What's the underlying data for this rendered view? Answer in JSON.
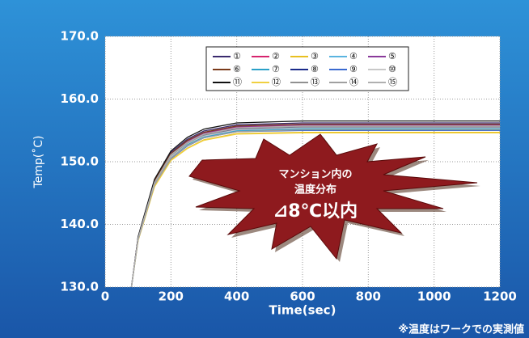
{
  "chart_data": {
    "type": "line",
    "ylabel": "Temp(˚C)",
    "xlabel": "Time(sec)",
    "annotation": [
      "マンション内の",
      "温度分布",
      "⊿8℃以内"
    ],
    "footnote": "※温度はワークでの実測値",
    "xlim": [
      0,
      1200
    ],
    "xticks": [
      0,
      200,
      400,
      600,
      800,
      1000,
      1200
    ],
    "ylim": [
      130,
      170
    ],
    "yticks": [
      {
        "value": 130,
        "label": "130.0"
      },
      {
        "value": 140,
        "label": "140.0"
      },
      {
        "value": 150,
        "label": "150.0"
      },
      {
        "value": 160,
        "label": "160.0"
      },
      {
        "value": 170,
        "label": "170.0"
      }
    ],
    "grid": true,
    "x": [
      80,
      100,
      150,
      200,
      250,
      300,
      400,
      600,
      800,
      1000,
      1200
    ],
    "series": [
      {
        "name": "①",
        "color": "#3a2a6e",
        "values": [
          130,
          137.9,
          147.0,
          151.5,
          153.6,
          154.9,
          155.9,
          156.2,
          156.2,
          156.2,
          156.2
        ]
      },
      {
        "name": "②",
        "color": "#d6246e",
        "values": [
          130,
          137.7,
          146.8,
          151.2,
          153.2,
          154.5,
          155.5,
          155.8,
          155.8,
          155.8,
          155.8
        ]
      },
      {
        "name": "③",
        "color": "#e8c020",
        "values": [
          130,
          137.4,
          146.1,
          150.3,
          152.2,
          153.5,
          154.5,
          154.7,
          154.7,
          154.7,
          154.7
        ]
      },
      {
        "name": "④",
        "color": "#5ab4e0",
        "values": [
          130,
          137.6,
          146.4,
          150.7,
          152.8,
          154.0,
          155.0,
          155.3,
          155.3,
          155.3,
          155.3
        ]
      },
      {
        "name": "⑤",
        "color": "#8a3a9a",
        "values": [
          130,
          137.8,
          146.8,
          151.2,
          153.3,
          154.6,
          155.6,
          155.9,
          155.9,
          155.9,
          155.9
        ]
      },
      {
        "name": "⑥",
        "color": "#7a3a1a",
        "values": [
          130,
          137.8,
          146.9,
          151.3,
          153.4,
          154.7,
          155.7,
          156.0,
          156.0,
          156.0,
          156.0
        ]
      },
      {
        "name": "⑦",
        "color": "#2aa0c8",
        "values": [
          130,
          137.6,
          146.4,
          150.7,
          152.7,
          153.9,
          154.9,
          155.2,
          155.2,
          155.2,
          155.2
        ]
      },
      {
        "name": "⑧",
        "color": "#1a2a8a",
        "values": [
          130,
          137.7,
          146.6,
          150.9,
          153.0,
          154.2,
          155.2,
          155.5,
          155.5,
          155.5,
          155.5
        ]
      },
      {
        "name": "⑨",
        "color": "#3a6ad0",
        "values": [
          130,
          137.5,
          146.3,
          150.5,
          152.5,
          153.8,
          154.8,
          155.0,
          155.0,
          155.0,
          155.0
        ]
      },
      {
        "name": "⑩",
        "color": "#c8c8c8",
        "values": [
          130,
          137.6,
          146.5,
          150.8,
          152.9,
          154.1,
          155.1,
          155.4,
          155.4,
          155.4,
          155.4
        ]
      },
      {
        "name": "⑪",
        "color": "#111111",
        "values": [
          130,
          138.0,
          147.2,
          151.7,
          153.9,
          155.2,
          156.2,
          156.5,
          156.5,
          156.5,
          156.5
        ]
      },
      {
        "name": "⑫",
        "color": "#f0d040",
        "values": [
          130,
          137.4,
          146.0,
          150.2,
          152.1,
          153.4,
          154.4,
          154.6,
          154.6,
          154.6,
          154.6
        ]
      },
      {
        "name": "⑬",
        "color": "#909090",
        "values": [
          130,
          137.7,
          146.6,
          151.0,
          153.0,
          154.3,
          155.3,
          155.6,
          155.6,
          155.6,
          155.6
        ]
      },
      {
        "name": "⑭",
        "color": "#a0a0a0",
        "values": [
          130,
          137.5,
          146.3,
          150.6,
          152.6,
          153.8,
          154.8,
          155.1,
          155.1,
          155.1,
          155.1
        ]
      },
      {
        "name": "⑮",
        "color": "#b0b0b0",
        "values": [
          130,
          137.7,
          146.7,
          151.1,
          153.1,
          154.4,
          155.4,
          155.7,
          155.7,
          155.7,
          155.7
        ]
      }
    ]
  }
}
